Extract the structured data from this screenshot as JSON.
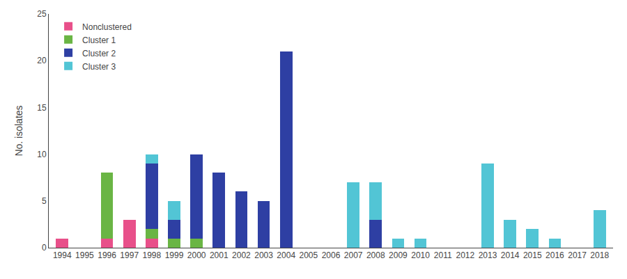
{
  "chart_data": {
    "type": "bar",
    "stacked": true,
    "ylabel": "No. isolates",
    "categories": [
      "1994",
      "1995",
      "1996",
      "1997",
      "1998",
      "1999",
      "2000",
      "2001",
      "2002",
      "2003",
      "2004",
      "2005",
      "2006",
      "2007",
      "2008",
      "2009",
      "2010",
      "2011",
      "2012",
      "2013",
      "2014",
      "2015",
      "2016",
      "2017",
      "2018"
    ],
    "series": [
      {
        "name": "Nonclustered",
        "color": "#e8508a",
        "values": [
          1,
          0,
          1,
          3,
          1,
          0,
          0,
          0,
          0,
          0,
          0,
          0,
          0,
          0,
          0,
          0,
          0,
          0,
          0,
          0,
          0,
          0,
          0,
          0,
          0
        ]
      },
      {
        "name": "Cluster 1",
        "color": "#6ab544",
        "values": [
          0,
          0,
          7,
          0,
          1,
          1,
          1,
          0,
          0,
          0,
          0,
          0,
          0,
          0,
          0,
          0,
          0,
          0,
          0,
          0,
          0,
          0,
          0,
          0,
          0
        ]
      },
      {
        "name": "Cluster 2",
        "color": "#2e3fa3",
        "values": [
          0,
          0,
          0,
          0,
          7,
          2,
          9,
          8,
          6,
          5,
          21,
          0,
          0,
          0,
          3,
          0,
          0,
          0,
          0,
          0,
          0,
          0,
          0,
          0,
          0
        ]
      },
      {
        "name": "Cluster 3",
        "color": "#52c5d5",
        "values": [
          0,
          0,
          0,
          0,
          1,
          2,
          0,
          0,
          0,
          0,
          0,
          0,
          0,
          7,
          4,
          1,
          1,
          0,
          0,
          9,
          3,
          2,
          1,
          0,
          4
        ]
      }
    ],
    "ylim": [
      0,
      25
    ],
    "yticks": [
      0,
      5,
      10,
      15,
      20,
      25
    ],
    "grid": false,
    "legend": "upper left"
  }
}
